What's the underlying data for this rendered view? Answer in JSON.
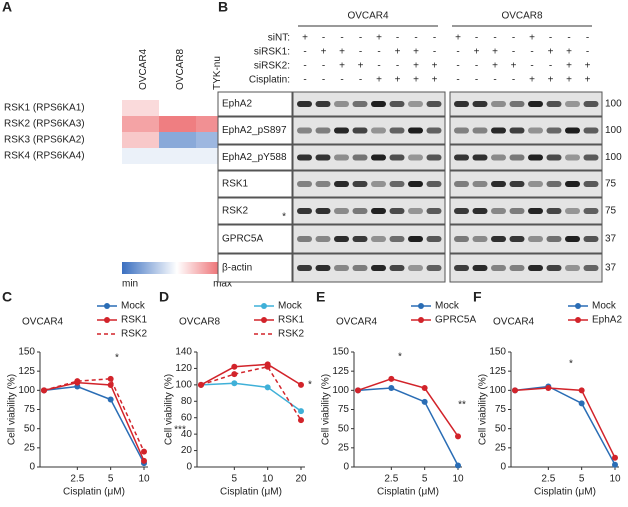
{
  "panel_labels": [
    "A",
    "B",
    "C",
    "D",
    "E",
    "F"
  ],
  "heatmap": {
    "columns": [
      "OVCAR4",
      "OVCAR8",
      "TYK-nu"
    ],
    "rows": [
      "RSK1 (RPS6KA1)",
      "RSK2 (RPS6KA3)",
      "RSK3 (RPS6KA2)",
      "RSK4 (RPS6KA4)"
    ],
    "values": [
      [
        0.6,
        0.5,
        0.5
      ],
      [
        0.75,
        0.85,
        0.8
      ],
      [
        0.65,
        0.2,
        0.25
      ],
      [
        0.45,
        0.45,
        0.45
      ]
    ],
    "range": [
      0,
      1
    ],
    "min_label": "min",
    "max_label": "max"
  },
  "blot": {
    "cell_lines": [
      "OVCAR4",
      "OVCAR8"
    ],
    "conditions": [
      {
        "name": "siNT:",
        "signs": [
          "+",
          "-",
          "-",
          "-",
          "+",
          "-",
          "-",
          "-",
          "+",
          "-",
          "-",
          "-",
          "+",
          "-",
          "-",
          "-"
        ]
      },
      {
        "name": "siRSK1:",
        "signs": [
          "-",
          "+",
          "+",
          "-",
          "-",
          "+",
          "+",
          "-",
          "-",
          "+",
          "+",
          "-",
          "-",
          "+",
          "+",
          "-"
        ]
      },
      {
        "name": "siRSK2:",
        "signs": [
          "-",
          "-",
          "+",
          "+",
          "-",
          "-",
          "+",
          "+",
          "-",
          "-",
          "+",
          "+",
          "-",
          "-",
          "+",
          "+"
        ]
      },
      {
        "name": "Cisplatin:",
        "signs": [
          "-",
          "-",
          "-",
          "-",
          "+",
          "+",
          "+",
          "+",
          "-",
          "-",
          "-",
          "-",
          "+",
          "+",
          "+",
          "+"
        ]
      }
    ],
    "proteins": [
      {
        "name": "EphA2",
        "marker": 100
      },
      {
        "name": "EphA2_pS897",
        "marker": 100
      },
      {
        "name": "EphA2_pY588",
        "marker": 100
      },
      {
        "name": "RSK1",
        "marker": 75
      },
      {
        "name": "RSK2",
        "marker": 75
      },
      {
        "name": "GPRC5A",
        "marker": 37
      },
      {
        "name": "β-actin",
        "marker": 37
      }
    ],
    "asterisk": "*"
  },
  "chart_data": [
    {
      "type": "line",
      "title": "OVCAR4",
      "x_label": "Cisplatin (μM)",
      "y_label": "Cell viability (%)",
      "categories": [
        null,
        "2.5",
        "5",
        "10"
      ],
      "ylim": [
        0,
        150
      ],
      "yticks": [
        0,
        25,
        50,
        75,
        100,
        125,
        150
      ],
      "series": [
        {
          "name": "Mock",
          "color": "#2a6db5",
          "dashed": false,
          "values": [
            100,
            105,
            88,
            5
          ]
        },
        {
          "name": "RSK1",
          "color": "#d2232a",
          "dashed": false,
          "values": [
            100,
            110,
            107,
            8
          ]
        },
        {
          "name": "RSK2",
          "color": "#d2232a",
          "dashed": true,
          "values": [
            100,
            112,
            115,
            20
          ]
        }
      ],
      "annotations": [
        "*",
        "***"
      ]
    },
    {
      "type": "line",
      "title": "OVCAR8",
      "x_label": "Cisplatin (μM)",
      "y_label": "Cell viability (%)",
      "categories": [
        null,
        "5",
        "10",
        "20"
      ],
      "ylim": [
        0,
        140
      ],
      "yticks": [
        0,
        20,
        40,
        60,
        80,
        100,
        120,
        140
      ],
      "series": [
        {
          "name": "Mock",
          "color": "#3fb0d8",
          "dashed": false,
          "values": [
            100,
            102,
            97,
            68
          ]
        },
        {
          "name": "RSK1",
          "color": "#d2232a",
          "dashed": false,
          "values": [
            100,
            122,
            125,
            100
          ]
        },
        {
          "name": "RSK2",
          "color": "#d2232a",
          "dashed": true,
          "values": [
            100,
            113,
            122,
            57
          ]
        }
      ],
      "annotations": [
        "*"
      ]
    },
    {
      "type": "line",
      "title": "OVCAR4",
      "x_label": "Cisplatin (μM)",
      "y_label": "Cell viability (%)",
      "categories": [
        null,
        "2.5",
        "5",
        "10"
      ],
      "ylim": [
        0,
        150
      ],
      "yticks": [
        0,
        25,
        50,
        75,
        100,
        125,
        150
      ],
      "series": [
        {
          "name": "Mock",
          "color": "#2a6db5",
          "dashed": false,
          "values": [
            100,
            103,
            85,
            2
          ]
        },
        {
          "name": "GPRC5A",
          "color": "#d2232a",
          "dashed": false,
          "values": [
            100,
            115,
            103,
            40
          ]
        }
      ],
      "annotations": [
        "*",
        "**"
      ]
    },
    {
      "type": "line",
      "title": "OVCAR4",
      "x_label": "Cisplatin (μM)",
      "y_label": "Cell viability (%)",
      "categories": [
        null,
        "2.5",
        "5",
        "10"
      ],
      "ylim": [
        0,
        150
      ],
      "yticks": [
        0,
        25,
        50,
        75,
        100,
        125,
        150
      ],
      "series": [
        {
          "name": "Mock",
          "color": "#2a6db5",
          "dashed": false,
          "values": [
            100,
            105,
            83,
            3
          ]
        },
        {
          "name": "EphA2",
          "color": "#d2232a",
          "dashed": false,
          "values": [
            100,
            103,
            100,
            12
          ]
        }
      ],
      "annotations": [
        "*"
      ]
    }
  ]
}
